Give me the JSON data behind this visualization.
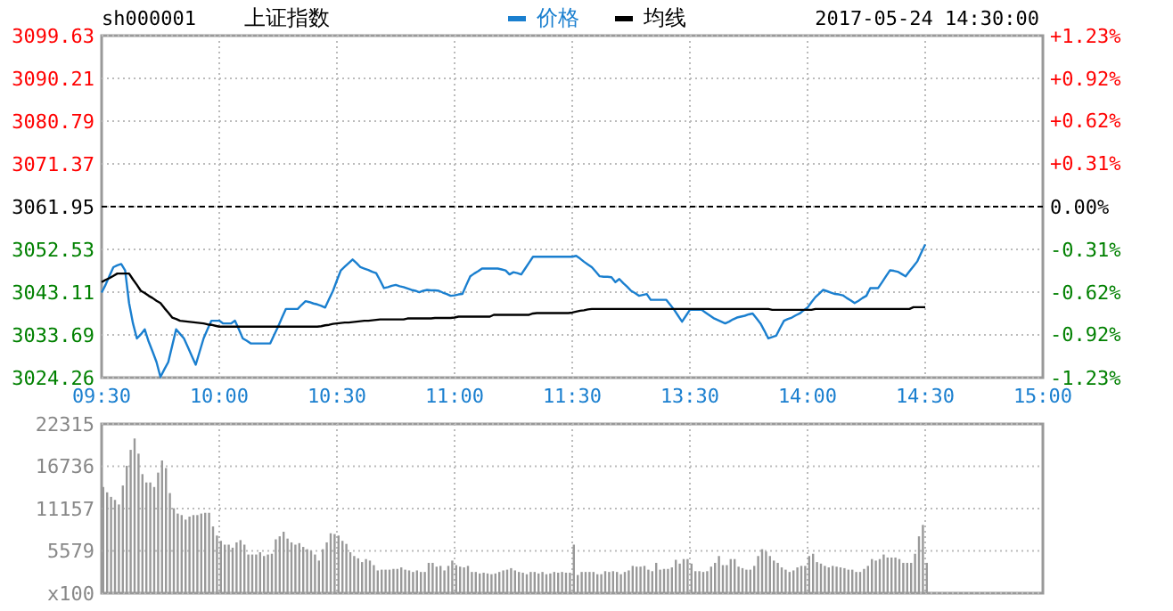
{
  "chart_data": [
    {
      "type": "line",
      "title": "上证指数",
      "subtitle": "sh000001",
      "annotations": [
        "2017-05-24 14:30:00"
      ],
      "categories": [
        "09:30",
        null,
        null,
        null,
        null,
        null,
        null,
        null,
        null,
        null,
        null,
        null,
        null,
        null,
        null,
        null,
        null,
        null,
        null,
        null,
        null,
        null,
        null,
        null,
        null,
        null,
        null,
        null,
        null,
        null,
        "10:00",
        null,
        null,
        null,
        null,
        null,
        null,
        null,
        null,
        null,
        null,
        null,
        null,
        null,
        null,
        null,
        null,
        null,
        null,
        null,
        null,
        null,
        null,
        null,
        null,
        null,
        null,
        null,
        null,
        null,
        "10:30",
        null,
        null,
        null,
        null,
        null,
        null,
        null,
        null,
        null,
        null,
        null,
        null,
        null,
        null,
        null,
        null,
        null,
        null,
        null,
        null,
        null,
        null,
        null,
        null,
        null,
        null,
        null,
        null,
        null,
        "11:00",
        null,
        null,
        null,
        null,
        null,
        null,
        null,
        null,
        null,
        null,
        null,
        null,
        null,
        null,
        null,
        null,
        null,
        null,
        null,
        null,
        null,
        null,
        null,
        null,
        null,
        null,
        null,
        null,
        null,
        "11:30",
        null,
        null,
        null,
        null,
        null,
        null,
        null,
        null,
        null,
        null,
        null,
        null,
        null,
        null,
        null,
        null,
        null,
        null,
        null,
        null,
        null,
        null,
        null,
        null,
        null,
        null,
        null,
        null,
        null,
        "13:30",
        null,
        null,
        null,
        null,
        null,
        null,
        null,
        null,
        null,
        null,
        null,
        null,
        null,
        null,
        null,
        null,
        null,
        null,
        null,
        null,
        null,
        null,
        null,
        null,
        null,
        null,
        null,
        null,
        null,
        "14:00",
        null,
        null,
        null,
        null,
        null,
        null,
        null,
        null,
        null,
        null,
        null,
        null,
        null,
        null,
        null,
        null,
        null,
        null,
        null,
        null,
        null,
        null,
        null,
        null,
        null,
        null,
        null,
        null,
        null,
        "14:30",
        null,
        null,
        null,
        null,
        null,
        null,
        null,
        null,
        null,
        null,
        null,
        null,
        null,
        null,
        null,
        null,
        null,
        null,
        null,
        null,
        null,
        null,
        null,
        null,
        null,
        null,
        null,
        null,
        null,
        "15:00"
      ],
      "ylim": [
        3024.26,
        3099.63
      ],
      "yticks": [
        3024.26,
        3033.69,
        3043.11,
        3052.53,
        3061.95,
        3071.37,
        3080.79,
        3090.21,
        3099.63
      ],
      "y2lim": [
        -1.23,
        1.23
      ],
      "y2ticks": [
        {
          "value": -1.23,
          "label": "-1.23%"
        },
        {
          "value": -0.92,
          "label": "-0.92%"
        },
        {
          "value": -0.62,
          "label": "-0.62%"
        },
        {
          "value": -0.31,
          "label": "-0.31%"
        },
        {
          "value": 0,
          "label": "0.00%"
        },
        {
          "value": 0.31,
          "label": "+0.31%"
        },
        {
          "value": 0.62,
          "label": "+0.62%"
        },
        {
          "value": 0.92,
          "label": "+0.92%"
        },
        {
          "value": 1.23,
          "label": "+1.23%"
        }
      ],
      "grid": true,
      "legend": "top",
      "ref_lines": [
        {
          "axis": "y",
          "value": 3061.95,
          "color": "#000000",
          "line_style": "dashed"
        }
      ],
      "series": [
        {
          "name": "价格",
          "color": "#1a7fcf",
          "values": [
            3043.0,
            3044.7,
            3046.7,
            3048.6,
            3049.0,
            3049.3,
            3047.9,
            3040.7,
            3036.2,
            3032.9,
            3033.8,
            3034.9,
            3032.2,
            3030.0,
            3027.7,
            3024.4,
            3026.1,
            3027.7,
            3031.3,
            3034.9,
            3033.9,
            3032.9,
            3031.0,
            3029.0,
            3027.1,
            3030.0,
            3032.9,
            3034.9,
            3036.8,
            3036.8,
            3036.8,
            3036.2,
            3036.2,
            3036.2,
            3036.8,
            3034.9,
            3032.9,
            3032.4,
            3031.8,
            3031.8,
            3031.8,
            3031.8,
            3031.8,
            3031.8,
            3033.7,
            3035.5,
            3037.5,
            3039.4,
            3039.4,
            3039.4,
            3039.4,
            3040.3,
            3041.1,
            3040.9,
            3040.6,
            3040.4,
            3040.1,
            3039.7,
            3041.6,
            3043.4,
            3045.7,
            3047.9,
            3048.7,
            3049.5,
            3050.3,
            3049.5,
            3048.6,
            3048.3,
            3048.0,
            3047.6,
            3047.3,
            3045.7,
            3044.0,
            3044.2,
            3044.5,
            3044.7,
            3044.4,
            3044.2,
            3043.9,
            3043.6,
            3043.4,
            3043.1,
            3043.4,
            3043.6,
            3043.5,
            3043.5,
            3043.4,
            3043.0,
            3042.7,
            3042.3,
            3042.4,
            3042.6,
            3042.7,
            3044.7,
            3046.6,
            3047.2,
            3047.7,
            3048.3,
            3048.3,
            3048.3,
            3048.3,
            3048.3,
            3048.1,
            3047.9,
            3047.0,
            3047.5,
            3047.3,
            3047.0,
            3048.3,
            3049.6,
            3050.9,
            3050.9,
            3050.9,
            3050.9,
            3050.9,
            3050.9,
            3050.9,
            3050.9,
            3050.9,
            3050.9,
            3050.9,
            3051.1,
            3050.5,
            3049.8,
            3049.2,
            3048.6,
            3047.6,
            3046.6,
            3046.5,
            3046.5,
            3046.4,
            3045.3,
            3046.0,
            3045.1,
            3044.3,
            3043.4,
            3042.9,
            3042.3,
            3042.5,
            3042.7,
            3041.4,
            3041.4,
            3041.4,
            3041.4,
            3041.4,
            3040.3,
            3039.2,
            3037.9,
            3036.6,
            3037.9,
            3039.2,
            3039.2,
            3039.2,
            3039.2,
            3038.6,
            3038.0,
            3037.4,
            3037.0,
            3036.6,
            3036.2,
            3036.6,
            3037.1,
            3037.5,
            3037.7,
            3037.9,
            3038.2,
            3038.4,
            3037.3,
            3036.2,
            3034.6,
            3032.9,
            3033.2,
            3033.5,
            3035.2,
            3036.8,
            3037.2,
            3037.5,
            3038.0,
            3038.4,
            3039.1,
            3039.7,
            3040.9,
            3042.0,
            3042.8,
            3043.6,
            3043.3,
            3043.0,
            3042.7,
            3042.6,
            3042.4,
            3041.8,
            3041.3,
            3040.7,
            3041.2,
            3041.8,
            3042.3,
            3044.0,
            3044.0,
            3044.0,
            3045.3,
            3046.6,
            3047.9,
            3047.8,
            3047.6,
            3047.1,
            3046.6,
            3047.7,
            3048.8,
            3049.9,
            3051.8,
            3053.6,
            null,
            null,
            null,
            null,
            null,
            null,
            null,
            null,
            null,
            null,
            null,
            null,
            null,
            null,
            null,
            null,
            null,
            null,
            null,
            null,
            null,
            null,
            null,
            null,
            null,
            null,
            null,
            null,
            null,
            null
          ]
        },
        {
          "name": "均线",
          "color": "#000000",
          "values": [
            3045.3,
            3045.8,
            3046.2,
            3046.7,
            3047.2,
            3047.2,
            3047.2,
            3047.2,
            3045.9,
            3044.7,
            3043.4,
            3042.9,
            3042.3,
            3041.8,
            3041.2,
            3040.7,
            3039.6,
            3038.6,
            3037.5,
            3037.2,
            3036.8,
            3036.7,
            3036.6,
            3036.5,
            3036.4,
            3036.3,
            3036.2,
            3036.0,
            3035.9,
            3035.7,
            3035.5,
            3035.5,
            3035.5,
            3035.5,
            3035.5,
            3035.5,
            3035.5,
            3035.5,
            3035.5,
            3035.5,
            3035.5,
            3035.5,
            3035.5,
            3035.5,
            3035.5,
            3035.5,
            3035.5,
            3035.5,
            3035.5,
            3035.5,
            3035.5,
            3035.5,
            3035.5,
            3035.5,
            3035.5,
            3035.5,
            3035.6,
            3035.8,
            3035.9,
            3036.1,
            3036.2,
            3036.3,
            3036.4,
            3036.4,
            3036.5,
            3036.6,
            3036.7,
            3036.8,
            3036.8,
            3036.9,
            3037.0,
            3037.1,
            3037.1,
            3037.1,
            3037.1,
            3037.1,
            3037.1,
            3037.1,
            3037.3,
            3037.3,
            3037.3,
            3037.3,
            3037.3,
            3037.3,
            3037.3,
            3037.4,
            3037.4,
            3037.4,
            3037.4,
            3037.4,
            3037.5,
            3037.7,
            3037.7,
            3037.7,
            3037.7,
            3037.7,
            3037.7,
            3037.7,
            3037.7,
            3037.7,
            3038.1,
            3038.1,
            3038.1,
            3038.1,
            3038.1,
            3038.1,
            3038.1,
            3038.1,
            3038.1,
            3038.1,
            3038.4,
            3038.5,
            3038.5,
            3038.5,
            3038.5,
            3038.5,
            3038.5,
            3038.5,
            3038.5,
            3038.5,
            3038.6,
            3038.8,
            3039.0,
            3039.1,
            3039.3,
            3039.4,
            3039.4,
            3039.4,
            3039.4,
            3039.4,
            3039.4,
            3039.4,
            3039.4,
            3039.4,
            3039.4,
            3039.4,
            3039.4,
            3039.4,
            3039.4,
            3039.4,
            3039.4,
            3039.4,
            3039.4,
            3039.4,
            3039.4,
            3039.4,
            3039.4,
            3039.4,
            3039.4,
            3039.4,
            3039.4,
            3039.4,
            3039.4,
            3039.4,
            3039.4,
            3039.4,
            3039.4,
            3039.4,
            3039.4,
            3039.4,
            3039.4,
            3039.4,
            3039.4,
            3039.4,
            3039.4,
            3039.4,
            3039.4,
            3039.4,
            3039.4,
            3039.4,
            3039.4,
            3039.2,
            3039.2,
            3039.2,
            3039.2,
            3039.2,
            3039.2,
            3039.2,
            3039.2,
            3039.2,
            3039.2,
            3039.2,
            3039.4,
            3039.4,
            3039.4,
            3039.4,
            3039.4,
            3039.4,
            3039.4,
            3039.4,
            3039.4,
            3039.4,
            3039.4,
            3039.4,
            3039.4,
            3039.4,
            3039.4,
            3039.4,
            3039.4,
            3039.4,
            3039.4,
            3039.4,
            3039.4,
            3039.4,
            3039.4,
            3039.4,
            3039.4,
            3039.8,
            3039.8,
            3039.8,
            3039.8,
            null,
            null,
            null,
            null,
            null,
            null,
            null,
            null,
            null,
            null,
            null,
            null,
            null,
            null,
            null,
            null,
            null,
            null,
            null,
            null,
            null,
            null,
            null,
            null,
            null,
            null,
            null,
            null,
            null,
            null
          ]
        }
      ]
    },
    {
      "type": "bar",
      "color": "#999999",
      "tick_labels": "y",
      "grid": true,
      "categories": [
        null,
        null,
        null,
        null,
        null,
        null,
        null,
        null,
        null,
        null,
        null,
        null,
        null,
        null,
        null,
        null,
        null,
        null,
        null,
        null,
        null,
        null,
        null,
        null,
        null,
        null,
        null,
        null,
        null,
        null,
        null,
        null,
        null,
        null,
        null,
        null,
        null,
        null,
        null,
        null,
        null,
        null,
        null,
        null,
        null,
        null,
        null,
        null,
        null,
        null,
        null,
        null,
        null,
        null,
        null,
        null,
        null,
        null,
        null,
        null,
        null,
        null,
        null,
        null,
        null,
        null,
        null,
        null,
        null,
        null,
        null,
        null,
        null,
        null,
        null,
        null,
        null,
        null,
        null,
        null,
        null,
        null,
        null,
        null,
        null,
        null,
        null,
        null,
        null,
        null,
        null,
        null,
        null,
        null,
        null,
        null,
        null,
        null,
        null,
        null,
        null,
        null,
        null,
        null,
        null,
        null,
        null,
        null,
        null,
        null,
        null,
        null,
        null,
        null,
        null,
        null,
        null,
        null,
        null,
        null,
        null,
        null,
        null,
        null,
        null,
        null,
        null,
        null,
        null,
        null,
        null,
        null,
        null,
        null,
        null,
        null,
        null,
        null,
        null,
        null,
        null,
        null,
        null,
        null,
        null,
        null,
        null,
        null,
        null,
        null,
        null,
        null,
        null,
        null,
        null,
        null,
        null,
        null,
        null,
        null,
        null,
        null,
        null,
        null,
        null,
        null,
        null,
        null,
        null,
        null,
        null,
        null,
        null,
        null,
        null,
        null,
        null,
        null,
        null,
        null,
        null,
        null,
        null,
        null,
        null,
        null,
        null,
        null,
        null,
        null,
        null,
        null,
        null,
        null,
        null,
        null,
        null,
        null,
        null,
        null,
        null,
        null,
        null,
        null,
        null,
        null,
        null,
        null,
        null,
        null,
        null,
        null,
        null,
        null,
        null,
        null,
        null,
        null,
        null,
        null,
        null,
        null,
        null,
        null,
        null,
        null,
        null,
        null,
        null,
        null,
        null,
        null,
        null,
        null,
        null,
        null,
        null,
        null,
        null,
        null,
        null
      ],
      "ylim": [
        0,
        22315
      ],
      "yticks": [
        {
          "value": 0,
          "label": "x100"
        },
        5579,
        11157,
        16736,
        22315
      ],
      "values": [
        14000,
        13300,
        12700,
        12300,
        11700,
        14200,
        16800,
        18900,
        20400,
        18400,
        15700,
        14600,
        14600,
        14000,
        15900,
        17500,
        16500,
        13200,
        11200,
        10500,
        10300,
        9700,
        10100,
        10300,
        10300,
        10500,
        10600,
        10600,
        8800,
        7600,
        6900,
        6400,
        6400,
        6000,
        6700,
        7000,
        6400,
        5100,
        5100,
        5100,
        5400,
        4900,
        5100,
        5200,
        7100,
        7500,
        8100,
        7200,
        6700,
        6400,
        6600,
        6100,
        5800,
        5600,
        5100,
        4300,
        5800,
        6700,
        7900,
        7800,
        7600,
        6900,
        6500,
        5400,
        4900,
        4600,
        4100,
        4500,
        4300,
        3700,
        3000,
        3100,
        3100,
        3100,
        3200,
        3200,
        3400,
        3100,
        3000,
        2800,
        3000,
        2800,
        2800,
        4000,
        4000,
        3500,
        3600,
        3000,
        3600,
        4300,
        3700,
        3500,
        3400,
        3600,
        2800,
        2800,
        2600,
        2700,
        2600,
        2500,
        2600,
        2800,
        3000,
        3100,
        3300,
        3000,
        2800,
        2700,
        2500,
        2800,
        2800,
        2600,
        2800,
        2500,
        2600,
        2800,
        2700,
        2800,
        2700,
        2700,
        6400,
        2400,
        2800,
        2800,
        2800,
        2800,
        2500,
        2500,
        2900,
        2800,
        2900,
        2800,
        2500,
        2800,
        3000,
        3600,
        3500,
        3500,
        3600,
        3100,
        2900,
        4000,
        3100,
        3200,
        3200,
        3400,
        4400,
        3900,
        4500,
        4500,
        3900,
        2900,
        2900,
        2800,
        2900,
        3500,
        4000,
        4900,
        3700,
        3700,
        4500,
        4500,
        3500,
        3300,
        3100,
        3100,
        3600,
        4900,
        5800,
        5500,
        4900,
        4300,
        4000,
        3400,
        3100,
        2800,
        3000,
        3400,
        3600,
        3600,
        4900,
        5200,
        4100,
        3900,
        3600,
        3400,
        3600,
        3500,
        3400,
        3300,
        3100,
        3100,
        2800,
        2800,
        3200,
        3600,
        4500,
        4300,
        4500,
        5100,
        4700,
        4700,
        4700,
        4500,
        4000,
        4000,
        4000,
        5200,
        7500,
        9000,
        4000,
        null,
        null,
        null,
        null,
        null,
        null,
        null,
        null,
        null,
        null,
        null,
        null,
        null,
        null,
        null,
        null,
        null,
        null,
        null,
        null,
        null,
        null,
        null,
        null,
        null,
        null,
        null,
        null,
        null,
        null
      ]
    }
  ]
}
